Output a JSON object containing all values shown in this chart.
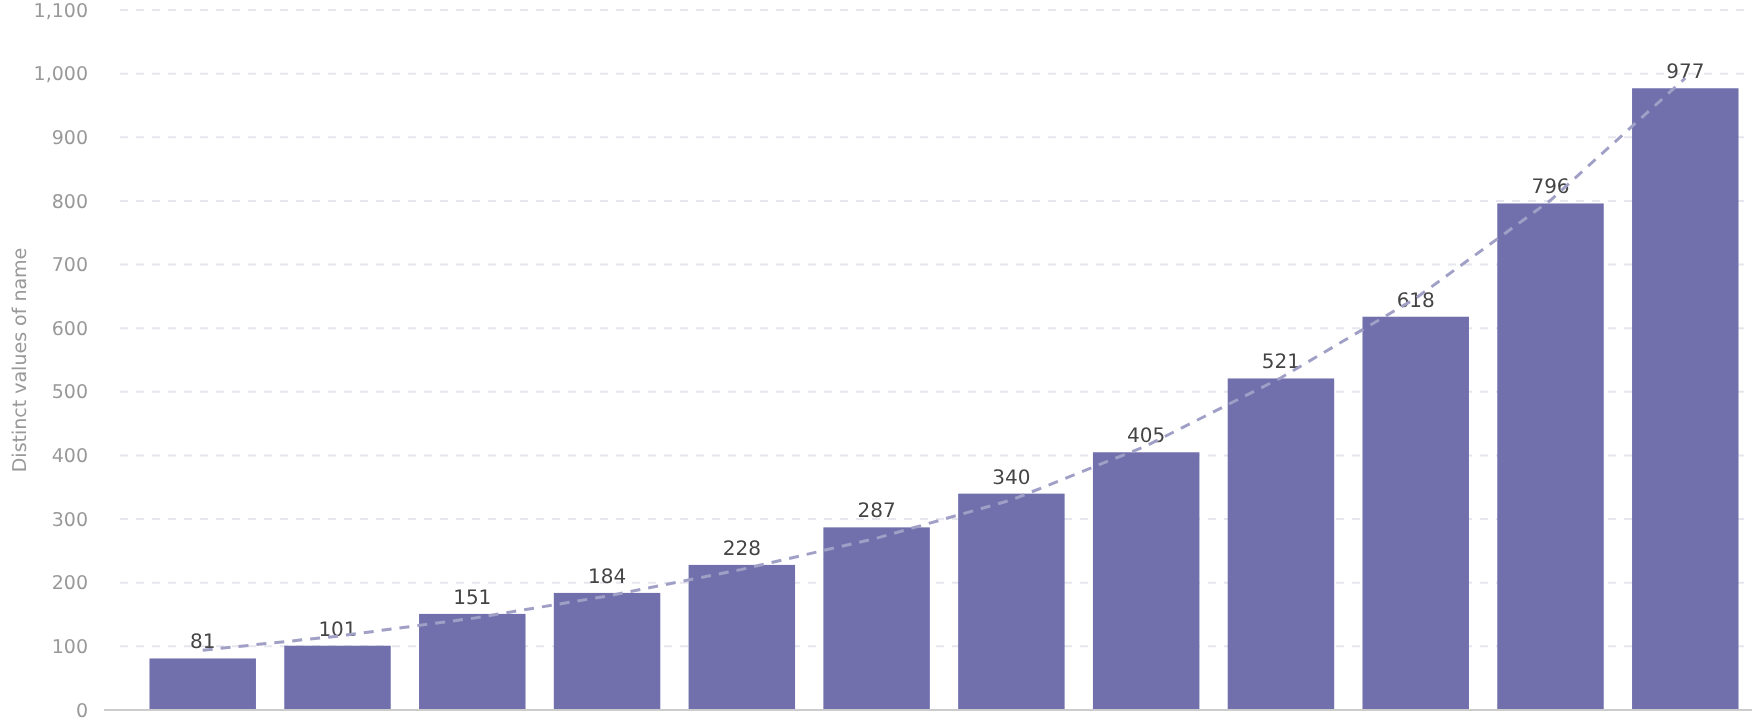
{
  "chart_data": {
    "type": "bar",
    "ylabel": "Distinct values of name",
    "categories": [
      null,
      null,
      null,
      null,
      null,
      null,
      null,
      null,
      null,
      null,
      null,
      null
    ],
    "series": [
      {
        "color": "#7170ad",
        "values": [
          81,
          101,
          151,
          184,
          228,
          287,
          340,
          405,
          521,
          618,
          796,
          977
        ],
        "value_labels": [
          "81",
          "101",
          "151",
          "184",
          "228",
          "287",
          "340",
          "405",
          "521",
          "618",
          "796",
          "977"
        ]
      },
      {
        "type": "line",
        "color": "#a09fc6",
        "line_style": "dashed",
        "values": [
          94,
          116,
          144,
          179,
          221,
          270,
          330,
          415,
          522,
          647,
          801,
          993
        ]
      }
    ],
    "ylim": [
      0,
      1100
    ],
    "yticks": [
      0,
      100,
      200,
      300,
      400,
      500,
      600,
      700,
      800,
      900,
      {
        "value": 1000,
        "label": "1,000"
      },
      {
        "value": 1100,
        "label": "1,100"
      }
    ],
    "grid": "y"
  }
}
